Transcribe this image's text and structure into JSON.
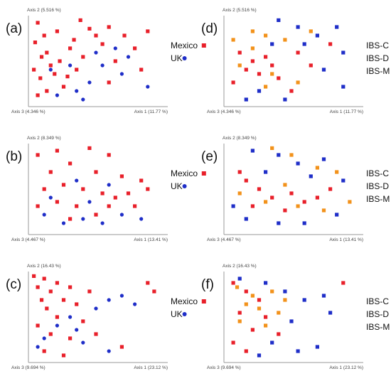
{
  "colors": {
    "mexico": "#e8202a",
    "uk": "#1f2ec8",
    "ibs_c": "#e8202a",
    "ibs_d": "#1f2ec8",
    "ibs_m": "#f2921b",
    "axis": "#9a9a9a",
    "axis_text": "#444444"
  },
  "chart_data": [
    {
      "type": "scatter",
      "panel": "(a)",
      "axis1": "Axis 1 (11.77 %)",
      "axis2": "Axis 2 (5.516 %)",
      "axis3": "Axis 3 (4.346 %)",
      "legend": [
        "Mexico",
        "UK"
      ],
      "series": [
        {
          "name": "Mexico",
          "marker": "square",
          "color": "mexico",
          "points": [
            [
              0.05,
              0.05
            ],
            [
              0.38,
              0.02
            ],
            [
              0.03,
              0.28
            ],
            [
              0.1,
              0.2
            ],
            [
              0.2,
              0.15
            ],
            [
              0.45,
              0.12
            ],
            [
              0.6,
              0.1
            ],
            [
              0.72,
              0.2
            ],
            [
              0.9,
              0.15
            ],
            [
              0.12,
              0.4
            ],
            [
              0.3,
              0.35
            ],
            [
              0.55,
              0.3
            ],
            [
              0.8,
              0.35
            ],
            [
              0.02,
              0.6
            ],
            [
              0.15,
              0.55
            ],
            [
              0.22,
              0.5
            ],
            [
              0.4,
              0.45
            ],
            [
              0.65,
              0.5
            ],
            [
              0.07,
              0.7
            ],
            [
              0.18,
              0.65
            ],
            [
              0.28,
              0.68
            ],
            [
              0.35,
              0.6
            ],
            [
              0.12,
              0.85
            ],
            [
              0.25,
              0.8
            ],
            [
              0.6,
              0.75
            ],
            [
              0.85,
              0.6
            ],
            [
              0.08,
              0.45
            ],
            [
              0.5,
              0.2
            ],
            [
              0.33,
              0.25
            ],
            [
              0.05,
              0.9
            ]
          ]
        },
        {
          "name": "UK",
          "marker": "circle",
          "color": "uk",
          "points": [
            [
              0.55,
              0.55
            ],
            [
              0.7,
              0.65
            ],
            [
              0.45,
              0.75
            ],
            [
              0.2,
              0.9
            ],
            [
              0.35,
              0.85
            ],
            [
              0.65,
              0.35
            ],
            [
              0.75,
              0.45
            ],
            [
              0.4,
              0.95
            ],
            [
              0.9,
              0.8
            ],
            [
              0.15,
              0.6
            ],
            [
              0.3,
              0.55
            ],
            [
              0.5,
              0.4
            ]
          ]
        }
      ]
    },
    {
      "type": "scatter",
      "panel": "(b)",
      "axis1": "Axis 1 (13.41 %)",
      "axis2": "Axis 2 (8.349 %)",
      "axis3": "Axis 3 (4.467 %)",
      "legend": [
        "Mexico",
        "UK"
      ],
      "series": [
        {
          "name": "Mexico",
          "marker": "square",
          "color": "mexico",
          "points": [
            [
              0.05,
              0.1
            ],
            [
              0.2,
              0.05
            ],
            [
              0.45,
              0.02
            ],
            [
              0.6,
              0.1
            ],
            [
              0.3,
              0.2
            ],
            [
              0.15,
              0.3
            ],
            [
              0.5,
              0.3
            ],
            [
              0.7,
              0.35
            ],
            [
              0.85,
              0.4
            ],
            [
              0.1,
              0.5
            ],
            [
              0.25,
              0.45
            ],
            [
              0.4,
              0.5
            ],
            [
              0.55,
              0.55
            ],
            [
              0.65,
              0.6
            ],
            [
              0.75,
              0.55
            ],
            [
              0.9,
              0.5
            ],
            [
              0.05,
              0.7
            ],
            [
              0.2,
              0.65
            ],
            [
              0.35,
              0.7
            ],
            [
              0.6,
              0.7
            ],
            [
              0.8,
              0.7
            ],
            [
              0.3,
              0.85
            ],
            [
              0.5,
              0.8
            ]
          ]
        },
        {
          "name": "UK",
          "marker": "circle",
          "color": "uk",
          "points": [
            [
              0.1,
              0.8
            ],
            [
              0.25,
              0.9
            ],
            [
              0.4,
              0.85
            ],
            [
              0.55,
              0.9
            ],
            [
              0.7,
              0.8
            ],
            [
              0.85,
              0.85
            ],
            [
              0.45,
              0.65
            ],
            [
              0.15,
              0.6
            ],
            [
              0.6,
              0.45
            ],
            [
              0.35,
              0.4
            ]
          ]
        }
      ]
    },
    {
      "type": "scatter",
      "panel": "(c)",
      "axis1": "Axis 1 (23.12 %)",
      "axis2": "Axis 2 (16.43 %)",
      "axis3": "Axis 3 (9.694 %)",
      "legend": [
        "Mexico",
        "UK"
      ],
      "series": [
        {
          "name": "Mexico",
          "marker": "square",
          "color": "mexico",
          "points": [
            [
              0.02,
              0.02
            ],
            [
              0.1,
              0.05
            ],
            [
              0.2,
              0.1
            ],
            [
              0.05,
              0.15
            ],
            [
              0.15,
              0.2
            ],
            [
              0.3,
              0.15
            ],
            [
              0.08,
              0.3
            ],
            [
              0.25,
              0.3
            ],
            [
              0.35,
              0.35
            ],
            [
              0.12,
              0.4
            ],
            [
              0.45,
              0.2
            ],
            [
              0.9,
              0.1
            ],
            [
              0.95,
              0.2
            ],
            [
              0.2,
              0.5
            ],
            [
              0.4,
              0.55
            ],
            [
              0.05,
              0.6
            ],
            [
              0.15,
              0.7
            ],
            [
              0.3,
              0.75
            ],
            [
              0.5,
              0.7
            ],
            [
              0.7,
              0.85
            ],
            [
              0.1,
              0.9
            ],
            [
              0.25,
              0.95
            ]
          ]
        },
        {
          "name": "UK",
          "marker": "circle",
          "color": "uk",
          "points": [
            [
              0.6,
              0.3
            ],
            [
              0.7,
              0.25
            ],
            [
              0.8,
              0.35
            ],
            [
              0.5,
              0.4
            ],
            [
              0.3,
              0.5
            ],
            [
              0.2,
              0.6
            ],
            [
              0.4,
              0.8
            ],
            [
              0.6,
              0.9
            ],
            [
              0.1,
              0.75
            ],
            [
              0.05,
              0.85
            ],
            [
              0.35,
              0.65
            ]
          ]
        }
      ]
    },
    {
      "type": "scatter",
      "panel": "(d)",
      "axis1": "Axis 1 (11.77 %)",
      "axis2": "Axis 2 (5.516 %)",
      "axis3": "Axis 3 (4.346 %)",
      "legend": [
        "IBS-C",
        "IBS-D",
        "IBS-M"
      ],
      "series": [
        {
          "name": "IBS-C",
          "marker": "square",
          "color": "ibs_c",
          "points": [
            [
              0.1,
              0.4
            ],
            [
              0.2,
              0.5
            ],
            [
              0.3,
              0.45
            ],
            [
              0.15,
              0.6
            ],
            [
              0.25,
              0.65
            ],
            [
              0.35,
              0.55
            ],
            [
              0.4,
              0.7
            ],
            [
              0.55,
              0.4
            ],
            [
              0.65,
              0.55
            ],
            [
              0.05,
              0.75
            ],
            [
              0.5,
              0.85
            ],
            [
              0.8,
              0.3
            ]
          ]
        },
        {
          "name": "IBS-D",
          "marker": "square",
          "color": "ibs_d",
          "points": [
            [
              0.4,
              0.02
            ],
            [
              0.55,
              0.1
            ],
            [
              0.7,
              0.2
            ],
            [
              0.85,
              0.1
            ],
            [
              0.6,
              0.3
            ],
            [
              0.9,
              0.4
            ],
            [
              0.75,
              0.6
            ],
            [
              0.45,
              0.95
            ],
            [
              0.9,
              0.8
            ],
            [
              0.35,
              0.3
            ],
            [
              0.25,
              0.85
            ],
            [
              0.15,
              0.95
            ]
          ]
        },
        {
          "name": "IBS-M",
          "marker": "square",
          "color": "ibs_m",
          "points": [
            [
              0.05,
              0.25
            ],
            [
              0.2,
              0.15
            ],
            [
              0.3,
              0.2
            ],
            [
              0.45,
              0.25
            ],
            [
              0.65,
              0.15
            ],
            [
              0.1,
              0.55
            ],
            [
              0.35,
              0.65
            ],
            [
              0.3,
              0.8
            ],
            [
              0.55,
              0.75
            ],
            [
              0.2,
              0.35
            ]
          ]
        }
      ]
    },
    {
      "type": "scatter",
      "panel": "(e)",
      "axis1": "Axis 1 (13.41 %)",
      "axis2": "Axis 2 (8.349 %)",
      "axis3": "Axis 3 (4.467 %)",
      "legend": [
        "IBS-C",
        "IBS-D",
        "IBS-M"
      ],
      "series": [
        {
          "name": "IBS-C",
          "marker": "square",
          "color": "ibs_c",
          "points": [
            [
              0.15,
              0.4
            ],
            [
              0.25,
              0.5
            ],
            [
              0.35,
              0.6
            ],
            [
              0.5,
              0.55
            ],
            [
              0.6,
              0.65
            ],
            [
              0.7,
              0.6
            ],
            [
              0.2,
              0.7
            ],
            [
              0.45,
              0.75
            ],
            [
              0.8,
              0.5
            ],
            [
              0.1,
              0.3
            ]
          ]
        },
        {
          "name": "IBS-D",
          "marker": "square",
          "color": "ibs_d",
          "points": [
            [
              0.2,
              0.05
            ],
            [
              0.4,
              0.1
            ],
            [
              0.55,
              0.2
            ],
            [
              0.75,
              0.15
            ],
            [
              0.3,
              0.3
            ],
            [
              0.65,
              0.35
            ],
            [
              0.9,
              0.4
            ],
            [
              0.15,
              0.85
            ],
            [
              0.4,
              0.9
            ],
            [
              0.6,
              0.9
            ],
            [
              0.85,
              0.8
            ],
            [
              0.05,
              0.7
            ]
          ]
        },
        {
          "name": "IBS-M",
          "marker": "square",
          "color": "ibs_m",
          "points": [
            [
              0.35,
              0.02
            ],
            [
              0.5,
              0.1
            ],
            [
              0.7,
              0.25
            ],
            [
              0.85,
              0.3
            ],
            [
              0.1,
              0.55
            ],
            [
              0.3,
              0.65
            ],
            [
              0.55,
              0.7
            ],
            [
              0.75,
              0.75
            ],
            [
              0.95,
              0.65
            ],
            [
              0.45,
              0.45
            ]
          ]
        }
      ]
    },
    {
      "type": "scatter",
      "panel": "(f)",
      "axis1": "Axis 1 (23.12 %)",
      "axis2": "Axis 2 (16.43 %)",
      "axis3": "Axis 3 (9.694 %)",
      "legend": [
        "IBS-C",
        "IBS-D",
        "IBS-M"
      ],
      "series": [
        {
          "name": "IBS-C",
          "marker": "square",
          "color": "ibs_c",
          "points": [
            [
              0.05,
              0.1
            ],
            [
              0.15,
              0.2
            ],
            [
              0.25,
              0.3
            ],
            [
              0.1,
              0.45
            ],
            [
              0.3,
              0.5
            ],
            [
              0.2,
              0.65
            ],
            [
              0.4,
              0.7
            ],
            [
              0.05,
              0.8
            ],
            [
              0.15,
              0.9
            ],
            [
              0.9,
              0.1
            ]
          ]
        },
        {
          "name": "IBS-D",
          "marker": "square",
          "color": "ibs_d",
          "points": [
            [
              0.1,
              0.05
            ],
            [
              0.3,
              0.1
            ],
            [
              0.45,
              0.2
            ],
            [
              0.6,
              0.3
            ],
            [
              0.75,
              0.25
            ],
            [
              0.8,
              0.45
            ],
            [
              0.5,
              0.55
            ],
            [
              0.35,
              0.8
            ],
            [
              0.55,
              0.9
            ],
            [
              0.7,
              0.85
            ],
            [
              0.25,
              0.95
            ]
          ]
        },
        {
          "name": "IBS-M",
          "marker": "square",
          "color": "ibs_m",
          "points": [
            [
              0.08,
              0.15
            ],
            [
              0.2,
              0.25
            ],
            [
              0.35,
              0.2
            ],
            [
              0.15,
              0.35
            ],
            [
              0.25,
              0.4
            ],
            [
              0.4,
              0.45
            ],
            [
              0.1,
              0.55
            ],
            [
              0.3,
              0.6
            ],
            [
              0.45,
              0.3
            ]
          ]
        }
      ]
    }
  ]
}
